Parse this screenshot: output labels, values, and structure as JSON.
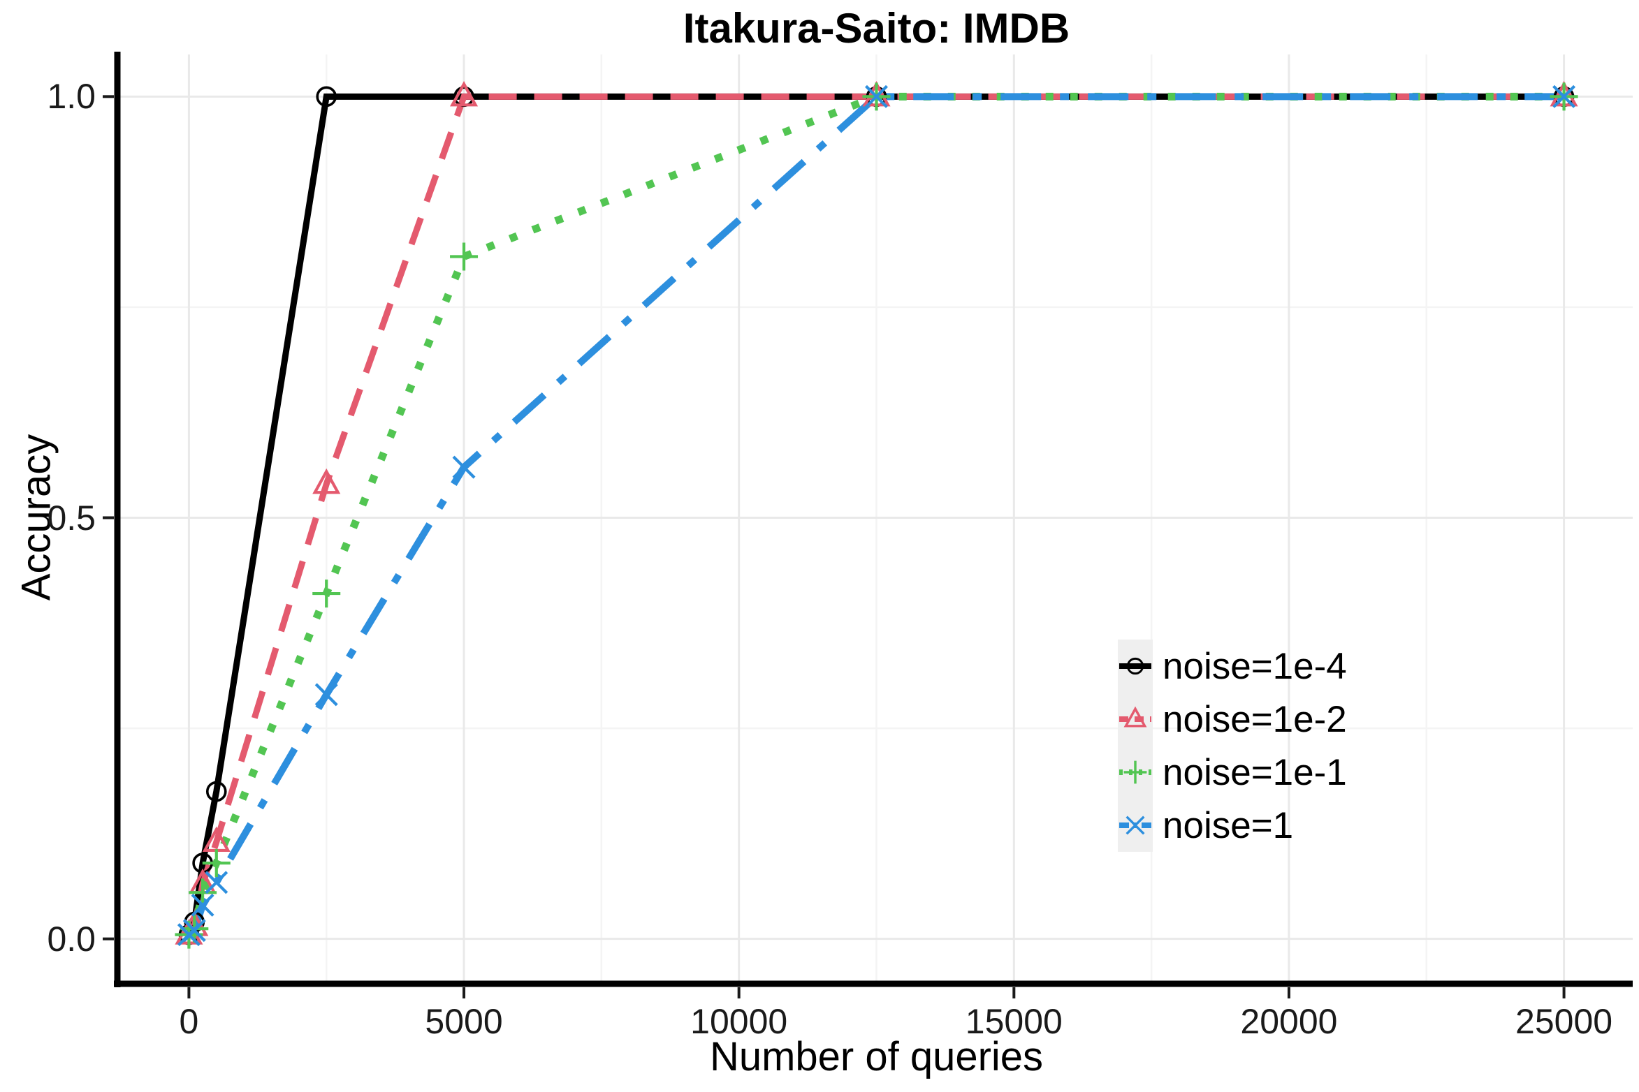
{
  "figure": {
    "title": "Itakura-Saito: IMDB"
  },
  "axes": {
    "x_label": "Number of queries",
    "y_label": "Accuracy",
    "x_tick_labels": [
      "0",
      "5000",
      "10000",
      "15000",
      "20000",
      "25000"
    ],
    "y_tick_labels": [
      "0.0",
      "0.5",
      "1.0"
    ]
  },
  "legend": {
    "position": "right-middle",
    "key_background": "#EFEFEF",
    "items": [
      {
        "label": "noise=1e-4"
      },
      {
        "label": "noise=1e-2"
      },
      {
        "label": "noise=1e-1"
      },
      {
        "label": "noise=1"
      }
    ]
  },
  "colors": {
    "background": "#FFFFFF",
    "axis_line": "#000000",
    "tick_mark": "#1A1A1A",
    "grid_major": "#E9E9E9",
    "grid_minor": "#F4F4F4"
  },
  "chart_data": {
    "type": "line",
    "title": "Itakura-Saito: IMDB",
    "xlabel": "Number of queries",
    "ylabel": "Accuracy",
    "xlim": [
      -1250,
      26250
    ],
    "ylim": [
      -0.05,
      1.05
    ],
    "x_ticks": [
      0,
      5000,
      10000,
      15000,
      20000,
      25000
    ],
    "x_minor_ticks": [
      2500,
      7500,
      12500,
      17500,
      22500
    ],
    "y_ticks": [
      0,
      0.5,
      1
    ],
    "y_minor_ticks": [
      0.25,
      0.75
    ],
    "grid": true,
    "legend_position": "right-middle",
    "x": [
      0,
      100,
      250,
      500,
      2500,
      5000,
      12500,
      25000
    ],
    "series": [
      {
        "name": "noise=1e-4",
        "color": "#000000",
        "linestyle": "solid",
        "marker": "circle",
        "values": [
          0.005,
          0.02,
          0.09,
          0.175,
          1.0,
          1.0,
          1.0,
          1.0
        ]
      },
      {
        "name": "noise=1e-2",
        "color": "#E45A6E",
        "linestyle": "dashed",
        "marker": "triangle",
        "values": [
          0.005,
          0.015,
          0.065,
          0.115,
          0.54,
          1.0,
          1.0,
          1.0
        ]
      },
      {
        "name": "noise=1e-1",
        "color": "#52C552",
        "linestyle": "dotted",
        "marker": "plus",
        "values": [
          0.005,
          0.012,
          0.055,
          0.09,
          0.41,
          0.81,
          1.0,
          1.0
        ]
      },
      {
        "name": "noise=1",
        "color": "#2D8FDE",
        "linestyle": "dashdot",
        "marker": "x",
        "values": [
          0.005,
          0.01,
          0.04,
          0.067,
          0.29,
          0.56,
          1.0,
          1.0
        ]
      }
    ]
  }
}
